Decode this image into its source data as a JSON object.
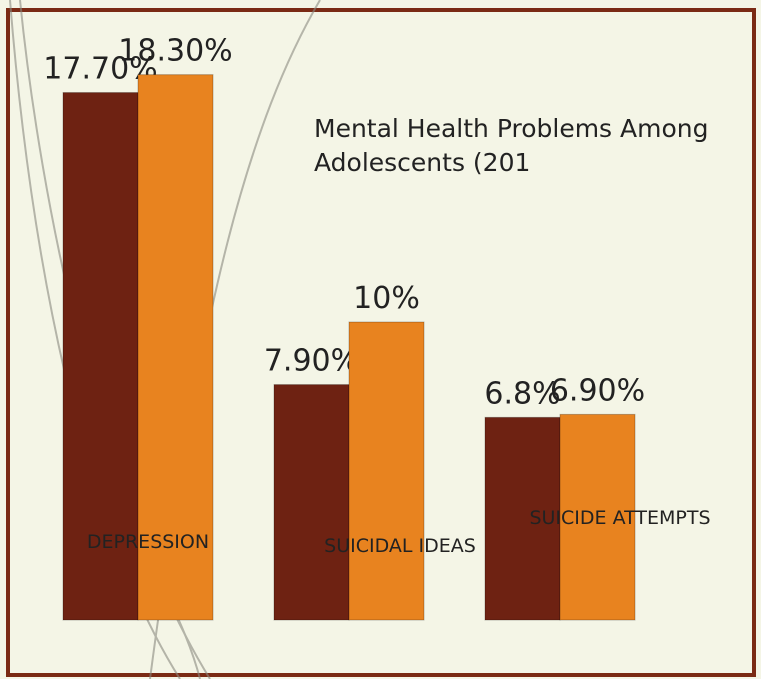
{
  "chart_data": {
    "type": "bar",
    "title": "Mental Health Problems Among Adolescents (201",
    "categories": [
      "DEPRESSION",
      "SUICIDAL IDEAS",
      "SUICIDE ATTEMPTS"
    ],
    "series": [
      {
        "color": "#6e2212",
        "values": [
          17.7,
          7.9,
          6.8
        ],
        "value_labels": [
          "17.70%",
          "7.90%",
          "6.8%"
        ]
      },
      {
        "color": "#e8831f",
        "values": [
          18.3,
          10,
          6.9
        ],
        "value_labels": [
          "18.30%",
          "10%",
          "6.90%"
        ]
      }
    ]
  }
}
